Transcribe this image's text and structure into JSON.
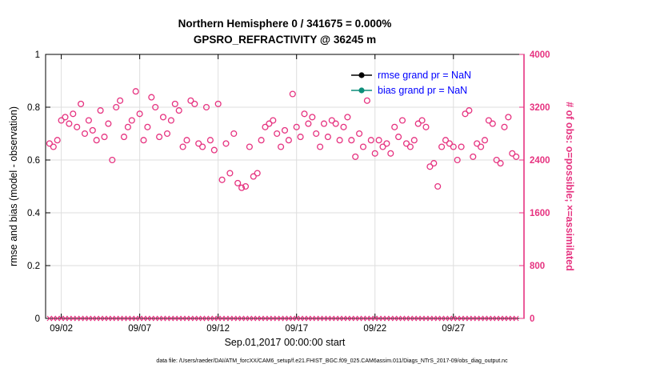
{
  "title": {
    "line1": "Northern Hemisphere 0 / 341675 = 0.000%",
    "line2": "GPSRO_REFRACTIVITY @ 36245 m"
  },
  "axes": {
    "left": {
      "label": "rmse and bias (model - observation)",
      "tick_labels": [
        "0",
        "0.2",
        "0.4",
        "0.6",
        "0.8",
        "1"
      ],
      "tick_values": [
        0,
        0.2,
        0.4,
        0.6,
        0.8,
        1
      ],
      "range": [
        0,
        1
      ],
      "color": "#000000"
    },
    "right": {
      "label": "# of obs: o=possible; ×=assimilated",
      "tick_labels": [
        "0",
        "800",
        "1600",
        "2400",
        "3200",
        "4000"
      ],
      "tick_values": [
        0,
        800,
        1600,
        2400,
        3200,
        4000
      ],
      "range": [
        0,
        4000
      ],
      "color": "#e63380"
    },
    "x": {
      "label": "Sep.01,2017 00:00:00 start",
      "tick_labels": [
        "09/02",
        "09/07",
        "09/12",
        "09/17",
        "09/22",
        "09/27"
      ],
      "tick_days": [
        1,
        6,
        11,
        16,
        21,
        26
      ],
      "range_days": [
        0,
        30.5
      ]
    }
  },
  "legend": {
    "text_color": "#0000ff",
    "entries": [
      {
        "label": "rmse grand pr = NaN",
        "color": "#000000"
      },
      {
        "label": "bias grand pr = NaN",
        "color": "#0d8e7a"
      }
    ]
  },
  "caption": "data file: /Users/raeder/DAI/ATM_forcXX/CAM6_setup/f.e21.FHIST_BGC.f09_025.CAM6assim.011/Diags_NTrS_2017-09/obs_diag_output.nc",
  "chart_data": {
    "type": "scatter",
    "title": "Northern Hemisphere 0 / 341675 = 0.000% | GPSRO_REFRACTIVITY @ 36245 m",
    "xlabel": "Sep.01,2017 00:00:00 start",
    "ylabel_left": "rmse and bias (model - observation)",
    "ylabel_right": "# of obs: o=possible; ×=assimilated",
    "ylim_left": [
      0,
      1
    ],
    "ylim_right": [
      0,
      4000
    ],
    "grid": true,
    "legend_position": "top-right-inside",
    "x_time": {
      "start_day": 0.25,
      "step_days": 0.25,
      "count": 120
    },
    "series": [
      {
        "name": "possible_obs",
        "marker": "circle",
        "axis": "right",
        "color": "#e63380",
        "values": [
          2650,
          2600,
          2700,
          3000,
          3050,
          2950,
          3100,
          2900,
          3250,
          2800,
          3000,
          2850,
          2700,
          3150,
          2750,
          2950,
          2400,
          3200,
          3300,
          2750,
          2900,
          3000,
          3440,
          3100,
          2700,
          2900,
          3350,
          3200,
          2750,
          3050,
          2800,
          3000,
          3250,
          3150,
          2600,
          2700,
          3300,
          3250,
          2650,
          2600,
          3200,
          2700,
          2550,
          3250,
          2100,
          2650,
          2200,
          2800,
          2050,
          1980,
          2000,
          2600,
          2150,
          2200,
          2700,
          2900,
          2950,
          3000,
          2800,
          2600,
          2850,
          2700,
          3400,
          2900,
          2750,
          3100,
          2950,
          3050,
          2800,
          2600,
          2950,
          2750,
          3000,
          2950,
          2700,
          2900,
          3050,
          2700,
          2450,
          2800,
          2600,
          3300,
          2700,
          2500,
          2700,
          2600,
          2650,
          2500,
          2900,
          2750,
          3000,
          2650,
          2600,
          2700,
          2950,
          3000,
          2900,
          2300,
          2350,
          2000,
          2600,
          2700,
          2650,
          2600,
          2400,
          2600,
          3100,
          3150,
          2450,
          2650,
          2600,
          2700,
          3000,
          2950,
          2400,
          2350,
          2900,
          3050,
          2500,
          2450
        ]
      },
      {
        "name": "assimilated_obs",
        "marker": "x",
        "axis": "right",
        "color": "#e63380",
        "constant_value": 0
      },
      {
        "name": "rmse",
        "marker": "line-dot",
        "axis": "left",
        "color": "#000000",
        "values": "NaN"
      },
      {
        "name": "bias",
        "marker": "line-dot",
        "axis": "left",
        "color": "#0d8e7a",
        "values": "NaN"
      }
    ]
  }
}
